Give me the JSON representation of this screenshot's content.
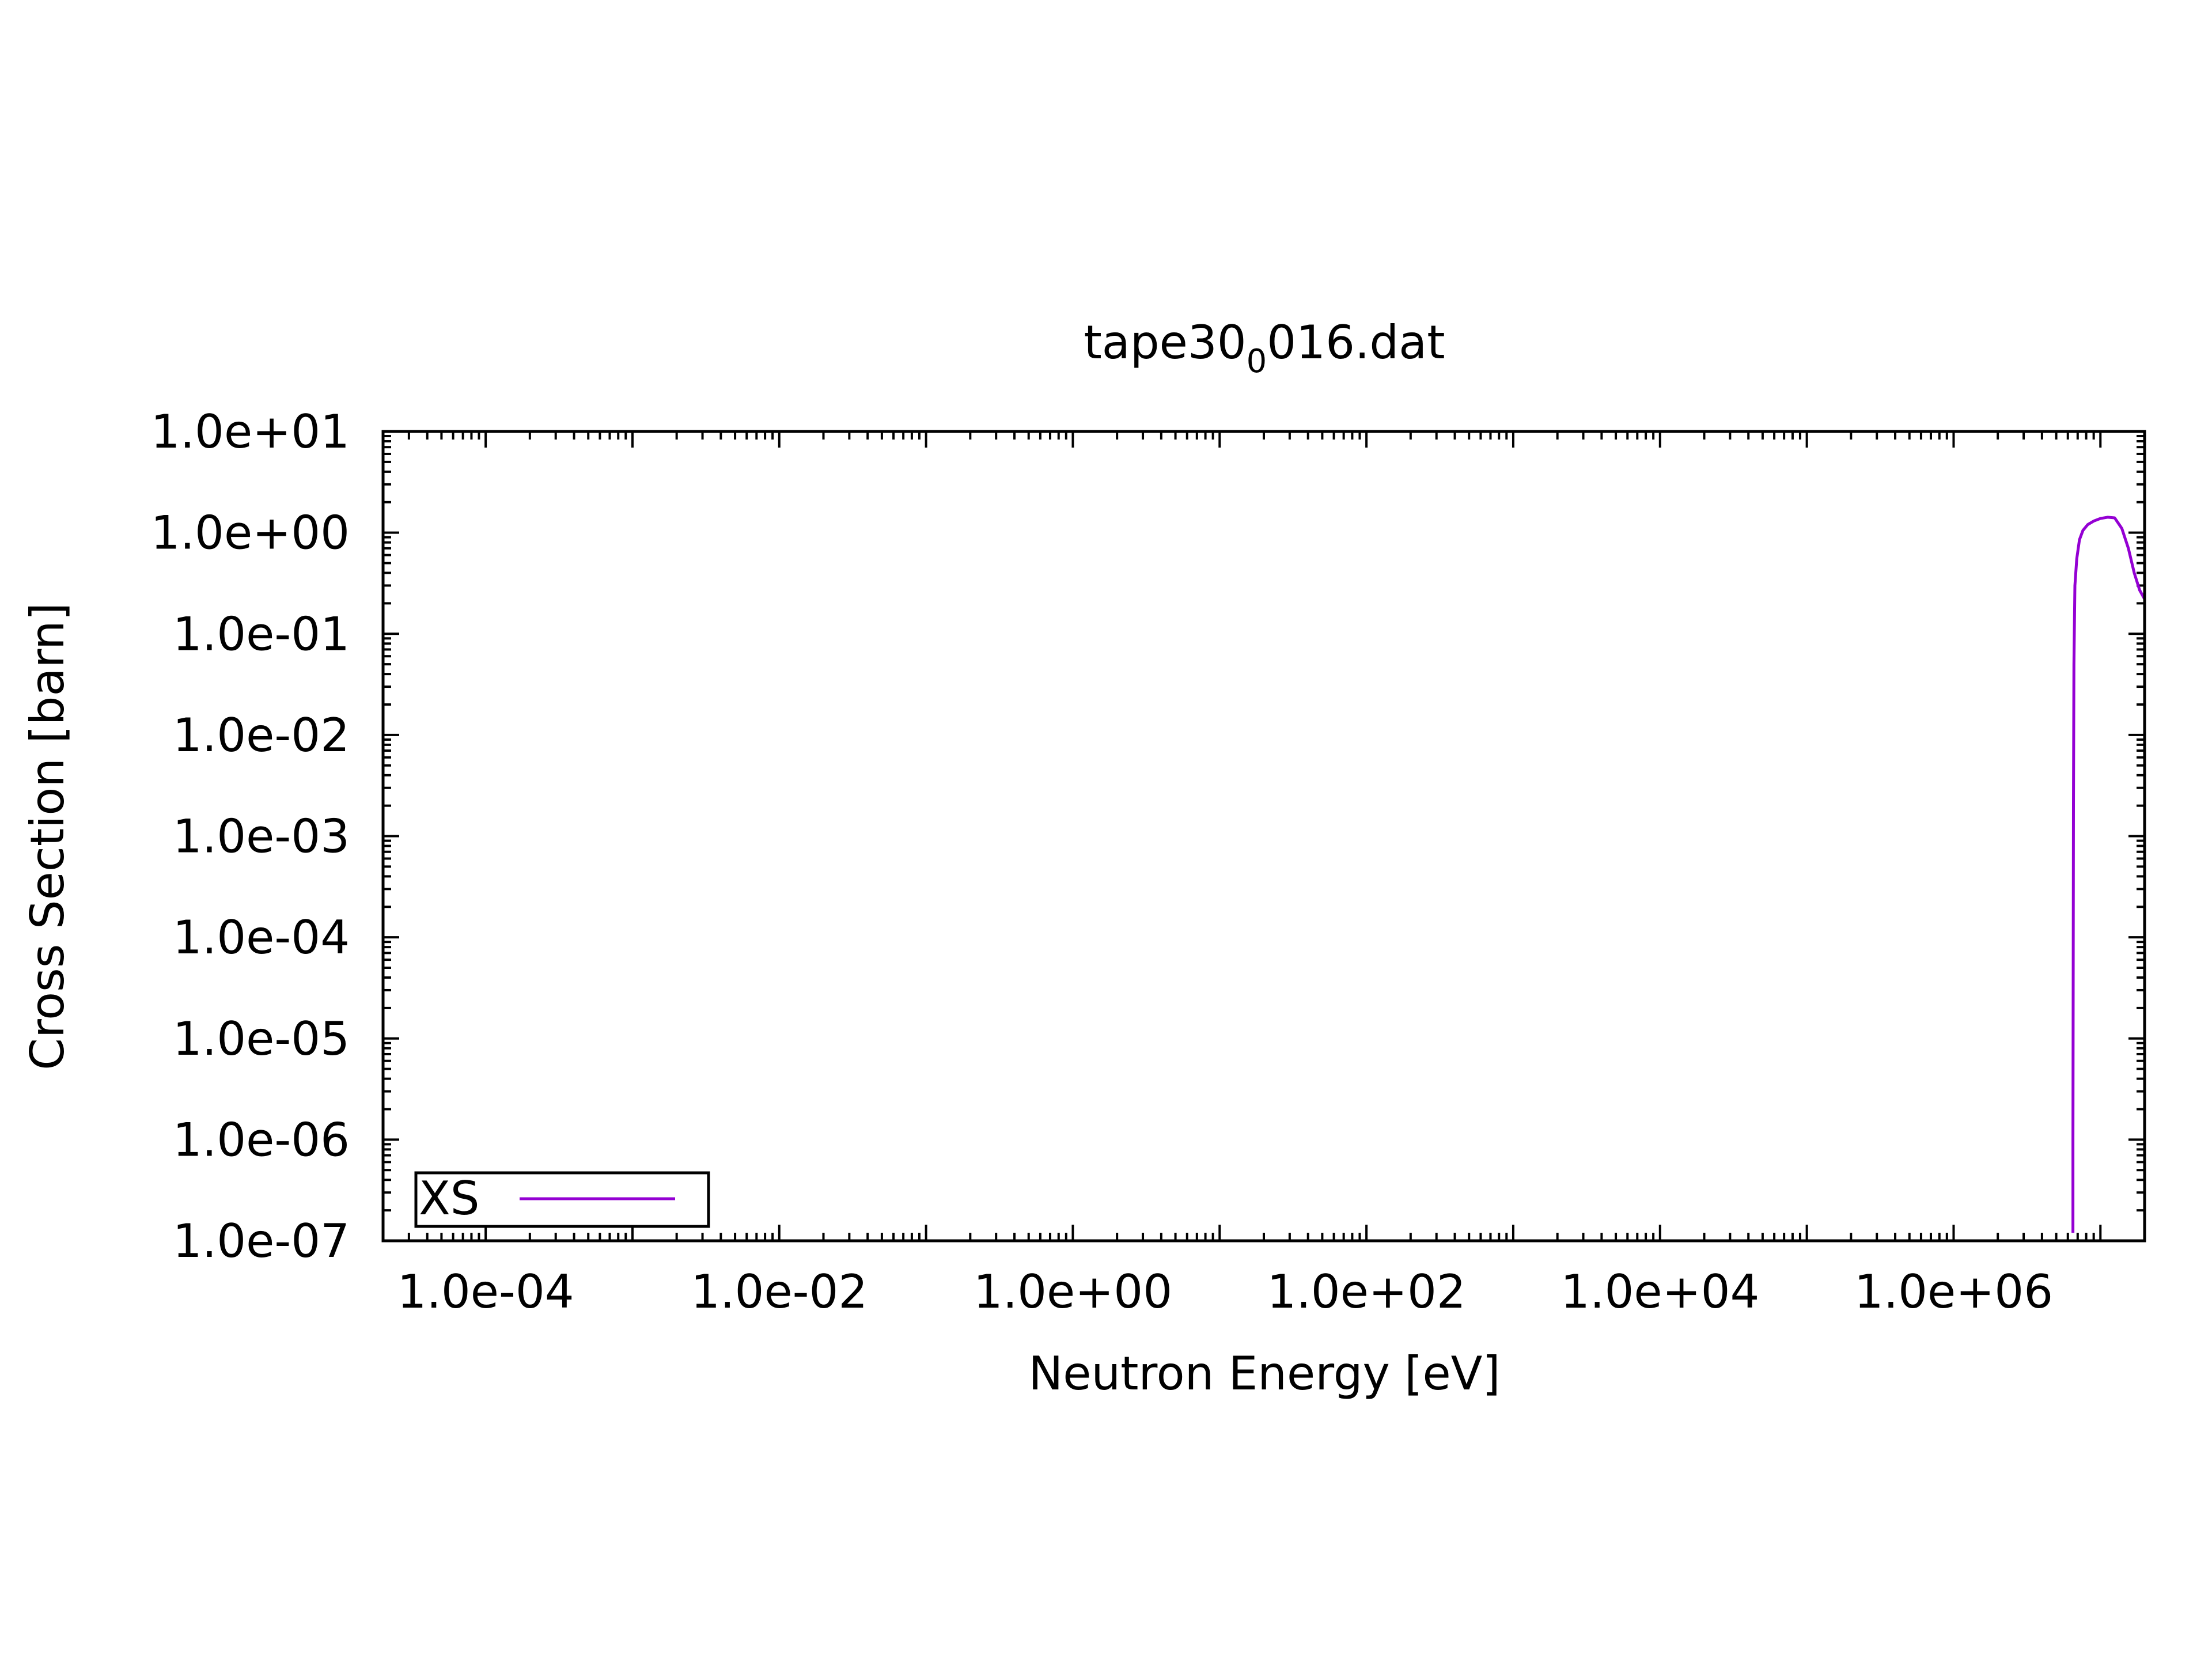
{
  "chart_data": {
    "type": "line",
    "title": {
      "main": "tape30",
      "subscript": "0",
      "suffix": "016.dat"
    },
    "xlabel": "Neutron Energy [eV]",
    "ylabel": "Cross Section [barn]",
    "xscale": "log",
    "yscale": "log",
    "xlim": [
      2e-05,
      20000000.0
    ],
    "ylim": [
      1e-07,
      10
    ],
    "xticks": [
      {
        "value": 0.0001,
        "label": "1.0e-04"
      },
      {
        "value": 0.01,
        "label": "1.0e-02"
      },
      {
        "value": 1,
        "label": "1.0e+00"
      },
      {
        "value": 100,
        "label": "1.0e+02"
      },
      {
        "value": 10000,
        "label": "1.0e+04"
      },
      {
        "value": 1000000,
        "label": "1.0e+06"
      }
    ],
    "yticks": [
      {
        "value": 10,
        "label": "1.0e+01"
      },
      {
        "value": 1,
        "label": "1.0e+00"
      },
      {
        "value": 0.1,
        "label": "1.0e-01"
      },
      {
        "value": 0.01,
        "label": "1.0e-02"
      },
      {
        "value": 0.001,
        "label": "1.0e-03"
      },
      {
        "value": 0.0001,
        "label": "1.0e-04"
      },
      {
        "value": 1e-05,
        "label": "1.0e-05"
      },
      {
        "value": 1e-06,
        "label": "1.0e-06"
      },
      {
        "value": 1e-07,
        "label": "1.0e-07"
      }
    ],
    "grid": false,
    "legend": {
      "position": "bottom-left",
      "boxed": true
    },
    "series": [
      {
        "name": "XS",
        "color": "#9400d3",
        "x": [
          6500000.0,
          6500000.0,
          6550000.0,
          6600000.0,
          6700000.0,
          6900000.0,
          7200000.0,
          7600000.0,
          8200000.0,
          9000000.0,
          10000000.0,
          11200000.0,
          12500000.0,
          14000000.0,
          15500000.0,
          17000000.0,
          18500000.0,
          20000000.0
        ],
        "y": [
          1.2e-07,
          1e-06,
          0.002,
          0.05,
          0.3,
          0.55,
          0.85,
          1.05,
          1.2,
          1.3,
          1.38,
          1.42,
          1.4,
          1.1,
          0.7,
          0.4,
          0.27,
          0.22
        ]
      }
    ]
  }
}
